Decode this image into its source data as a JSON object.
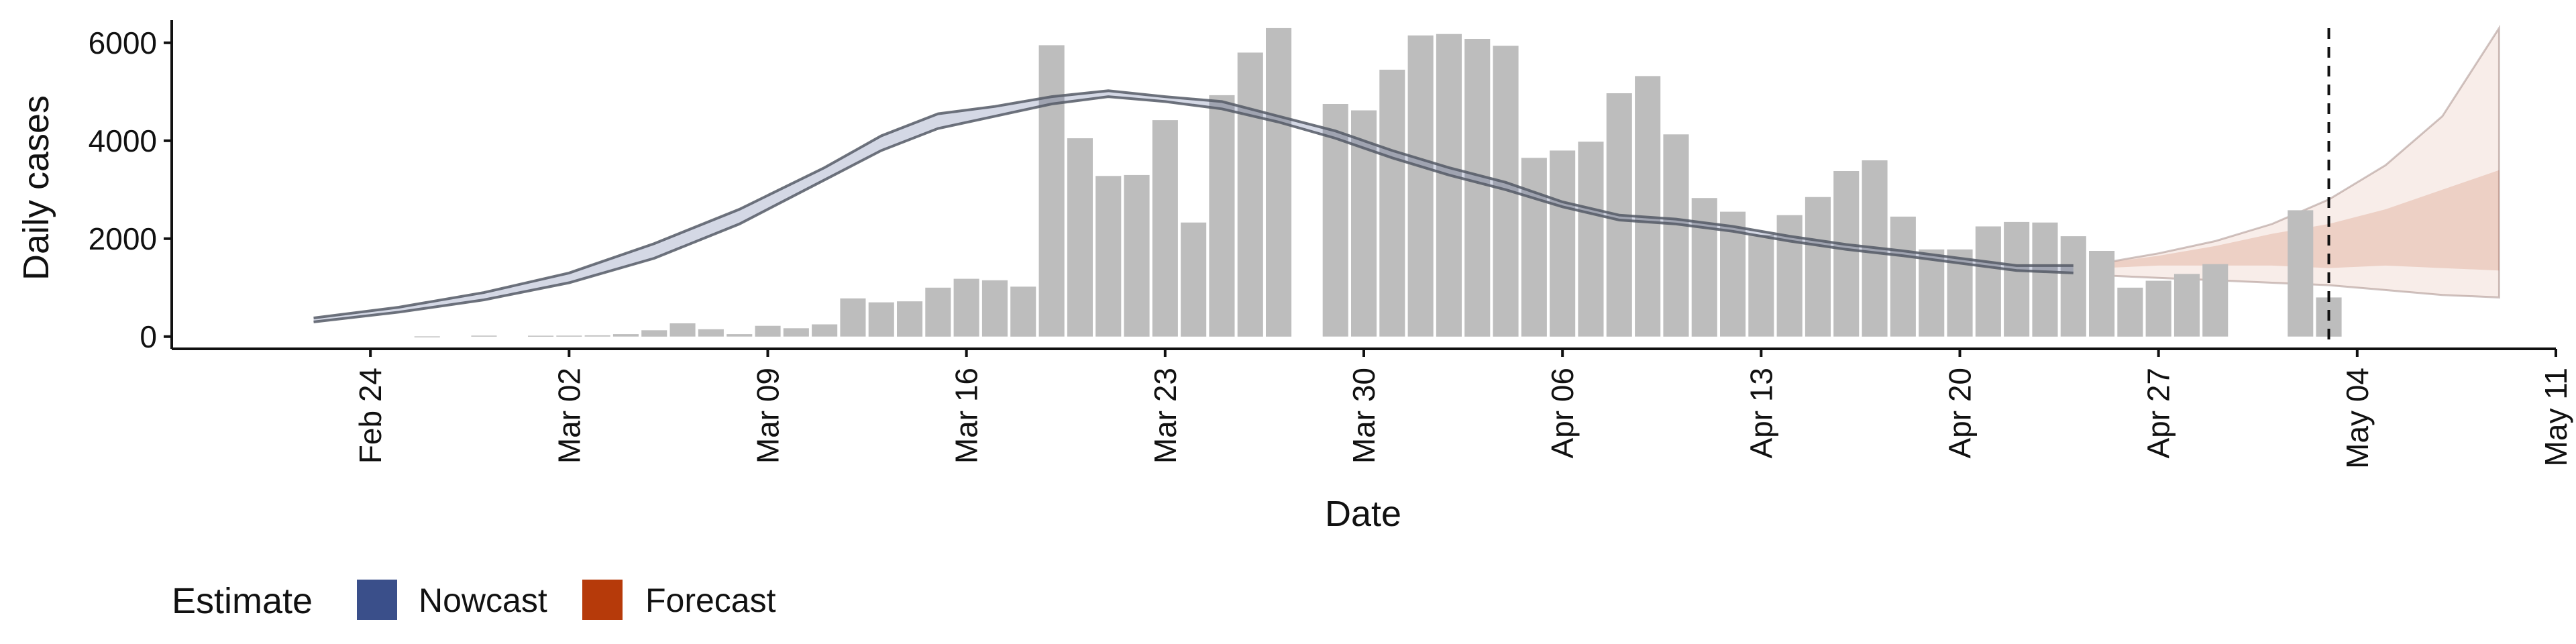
{
  "chart_data": {
    "type": "bar",
    "xlabel": "Date",
    "ylabel": "Daily cases",
    "x_range": [
      "2020-02-17",
      "2020-05-11"
    ],
    "ylim": [
      -250,
      6600
    ],
    "y_ticks": [
      0,
      2000,
      4000,
      6000
    ],
    "y_tick_labels": [
      "0",
      "2000",
      "4000",
      "6000"
    ],
    "x_ticks": [
      "2020-02-24",
      "2020-03-02",
      "2020-03-09",
      "2020-03-16",
      "2020-03-23",
      "2020-03-30",
      "2020-04-06",
      "2020-04-13",
      "2020-04-20",
      "2020-04-27",
      "2020-05-04",
      "2020-05-11"
    ],
    "x_tick_labels": [
      "Feb 24",
      "Mar 02",
      "Mar 09",
      "Mar 16",
      "Mar 23",
      "Mar 30",
      "Apr 06",
      "Apr 13",
      "Apr 20",
      "Apr 27",
      "May 04",
      "May 11"
    ],
    "grid": false,
    "bar_color": "#bdbdbd",
    "bars": {
      "start_date": "2020-02-26",
      "values": [
        5,
        0,
        20,
        0,
        18,
        20,
        25,
        50,
        130,
        270,
        150,
        50,
        220,
        170,
        250,
        780,
        700,
        720,
        1000,
        1180,
        1150,
        1020,
        5950,
        4050,
        3280,
        3300,
        4420,
        2330,
        4930,
        5800,
        6300,
        0,
        4750,
        4620,
        5450,
        6150,
        6180,
        6080,
        5940,
        3650,
        3800,
        3980,
        4970,
        5320,
        4130,
        2830,
        2550,
        2080,
        2480,
        2850,
        3380,
        3600,
        2450,
        1780,
        1780,
        2250,
        2340,
        2330,
        2050,
        1750,
        1000,
        1140,
        1280,
        1480,
        0,
        0,
        2580,
        800
      ]
    },
    "marker_date": "2020-05-03",
    "legend": {
      "title": "Estimate",
      "placement": "bottom-left",
      "items": [
        {
          "label": "Nowcast",
          "color": "#3a4f8a"
        },
        {
          "label": "Forecast",
          "color": "#b63a0a"
        }
      ]
    },
    "nowcast_line": {
      "color": "#3a4f8a",
      "dates": [
        "2020-02-22",
        "2020-02-25",
        "2020-02-28",
        "2020-03-02",
        "2020-03-05",
        "2020-03-08",
        "2020-03-11",
        "2020-03-13",
        "2020-03-15",
        "2020-03-17",
        "2020-03-19",
        "2020-03-21",
        "2020-03-23",
        "2020-03-25",
        "2020-03-27",
        "2020-03-29",
        "2020-03-31",
        "2020-04-02",
        "2020-04-04",
        "2020-04-06",
        "2020-04-08",
        "2020-04-10",
        "2020-04-12",
        "2020-04-14",
        "2020-04-16",
        "2020-04-18",
        "2020-04-20",
        "2020-04-22",
        "2020-04-24"
      ],
      "lower": [
        300,
        500,
        750,
        1100,
        1600,
        2300,
        3200,
        3800,
        4250,
        4500,
        4750,
        4900,
        4800,
        4650,
        4380,
        4050,
        3650,
        3300,
        3000,
        2650,
        2380,
        2300,
        2150,
        1950,
        1780,
        1650,
        1500,
        1350,
        1300
      ],
      "upper": [
        380,
        600,
        900,
        1300,
        1900,
        2600,
        3450,
        4100,
        4550,
        4700,
        4900,
        5020,
        4900,
        4800,
        4500,
        4200,
        3800,
        3450,
        3150,
        2750,
        2480,
        2400,
        2250,
        2050,
        1880,
        1750,
        1600,
        1450,
        1450
      ]
    },
    "forecast_band": {
      "color": "#b63a0a",
      "dates": [
        "2020-04-25",
        "2020-04-27",
        "2020-04-29",
        "2020-05-01",
        "2020-05-03",
        "2020-05-05",
        "2020-05-07",
        "2020-05-09"
      ],
      "outer_lower": [
        1250,
        1200,
        1150,
        1100,
        1050,
        950,
        850,
        800
      ],
      "outer_upper": [
        1500,
        1700,
        1950,
        2300,
        2800,
        3500,
        4500,
        6300
      ],
      "inner_lower": [
        1400,
        1450,
        1450,
        1450,
        1400,
        1450,
        1400,
        1350
      ],
      "inner_upper": [
        1500,
        1650,
        1850,
        2100,
        2300,
        2600,
        3000,
        3400
      ]
    }
  }
}
